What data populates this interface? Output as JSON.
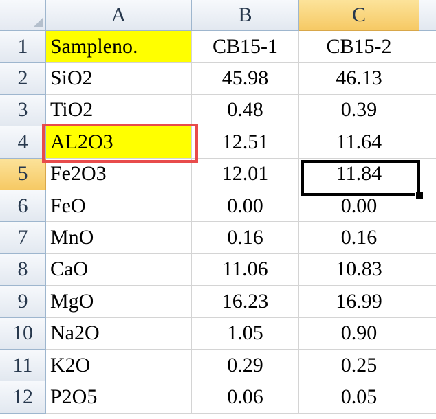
{
  "columns": [
    "A",
    "B",
    "C"
  ],
  "selected_cell": "C5",
  "rows": [
    {
      "row": "1",
      "a": "Sampleno.",
      "b": "CB15-1",
      "c": "CB15-2"
    },
    {
      "row": "2",
      "a": "SiO2",
      "b": "45.98",
      "c": "46.13"
    },
    {
      "row": "3",
      "a": "TiO2",
      "b": "0.48",
      "c": "0.39"
    },
    {
      "row": "4",
      "a": "AL2O3",
      "b": "12.51",
      "c": "11.64"
    },
    {
      "row": "5",
      "a": "Fe2O3",
      "b": "12.01",
      "c": "11.84"
    },
    {
      "row": "6",
      "a": "FeO",
      "b": "0.00",
      "c": "0.00"
    },
    {
      "row": "7",
      "a": "MnO",
      "b": "0.16",
      "c": "0.16"
    },
    {
      "row": "8",
      "a": "CaO",
      "b": "11.06",
      "c": "10.83"
    },
    {
      "row": "9",
      "a": "MgO",
      "b": "16.23",
      "c": "16.99"
    },
    {
      "row": "10",
      "a": "Na2O",
      "b": "1.05",
      "c": "0.90"
    },
    {
      "row": "11",
      "a": "K2O",
      "b": "0.29",
      "c": "0.25"
    },
    {
      "row": "12",
      "a": "P2O5",
      "b": "0.06",
      "c": "0.05"
    }
  ],
  "colors": {
    "highlight_fill": "#ffff00",
    "annotation_border": "#e84b4b",
    "selected_header": "#f6c964"
  }
}
